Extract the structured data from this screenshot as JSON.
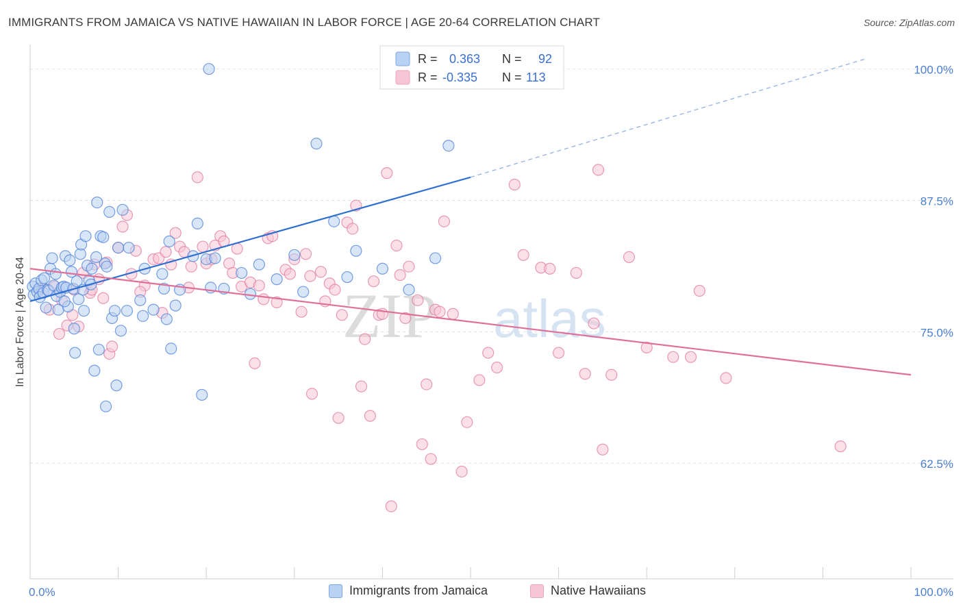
{
  "header": {
    "title": "IMMIGRANTS FROM JAMAICA VS NATIVE HAWAIIAN IN LABOR FORCE | AGE 20-64 CORRELATION CHART",
    "source": "Source: ZipAtlas.com"
  },
  "watermark": {
    "zip": "ZIP",
    "atlas": "atlas"
  },
  "chart_data": {
    "type": "scatter",
    "title": "IMMIGRANTS FROM JAMAICA VS NATIVE HAWAIIAN IN LABOR FORCE | AGE 20-64 CORRELATION CHART",
    "xlabel": "",
    "ylabel": "In Labor Force | Age 20-64",
    "xlim": [
      0,
      100
    ],
    "ylim": [
      51.5,
      102
    ],
    "x_tick_labels": [
      "0.0%",
      "100.0%"
    ],
    "y_ticks": [
      62.5,
      75.0,
      87.5,
      100.0
    ],
    "y_tick_labels": [
      "62.5%",
      "75.0%",
      "87.5%",
      "100.0%"
    ],
    "legend_stats": [
      {
        "r_label": "R =",
        "r_value": "0.363",
        "n_label": "N =",
        "n_value": "92"
      },
      {
        "r_label": "R =",
        "r_value": "-0.335",
        "n_label": "N =",
        "n_value": "113"
      }
    ],
    "series": [
      {
        "name": "Immigrants from Jamaica",
        "color": "#4a7fd8",
        "fill": "#b9d1f3",
        "trend": {
          "x0": 0,
          "y0": 77.9,
          "x1": 50,
          "y1": 89.7,
          "dashed_to_x": 95,
          "dashed_to_y": 101.0
        },
        "points": [
          [
            0.3,
            79.3
          ],
          [
            0.4,
            78.5
          ],
          [
            0.6,
            79.6
          ],
          [
            0.8,
            78.8
          ],
          [
            1.0,
            79.1
          ],
          [
            1.1,
            78.3
          ],
          [
            1.3,
            79.9
          ],
          [
            1.5,
            78.7
          ],
          [
            1.6,
            80.1
          ],
          [
            1.8,
            77.3
          ],
          [
            2.0,
            79.0
          ],
          [
            2.1,
            78.9
          ],
          [
            2.3,
            81.0
          ],
          [
            2.5,
            82.0
          ],
          [
            2.7,
            79.4
          ],
          [
            2.9,
            80.5
          ],
          [
            3.0,
            78.4
          ],
          [
            3.2,
            77.1
          ],
          [
            3.4,
            78.8
          ],
          [
            3.6,
            79.2
          ],
          [
            3.8,
            79.3
          ],
          [
            4.0,
            82.2
          ],
          [
            4.1,
            79.2
          ],
          [
            4.3,
            77.4
          ],
          [
            4.5,
            81.8
          ],
          [
            4.7,
            80.7
          ],
          [
            4.9,
            79.1
          ],
          [
            5.0,
            75.3
          ],
          [
            5.1,
            73.0
          ],
          [
            5.3,
            79.8
          ],
          [
            5.5,
            78.1
          ],
          [
            5.7,
            82.4
          ],
          [
            5.8,
            83.3
          ],
          [
            6.0,
            79.0
          ],
          [
            6.1,
            77.0
          ],
          [
            6.3,
            84.1
          ],
          [
            6.5,
            81.3
          ],
          [
            6.7,
            79.9
          ],
          [
            7.0,
            81.0
          ],
          [
            7.3,
            71.3
          ],
          [
            7.5,
            82.1
          ],
          [
            7.6,
            87.3
          ],
          [
            7.8,
            73.3
          ],
          [
            8.0,
            84.1
          ],
          [
            8.3,
            84.0
          ],
          [
            8.5,
            81.5
          ],
          [
            8.6,
            67.9
          ],
          [
            8.7,
            81.2
          ],
          [
            9.0,
            86.4
          ],
          [
            9.3,
            76.3
          ],
          [
            9.6,
            77.0
          ],
          [
            9.8,
            69.9
          ],
          [
            10.0,
            83.0
          ],
          [
            10.3,
            75.1
          ],
          [
            10.5,
            86.6
          ],
          [
            11.0,
            77.0
          ],
          [
            11.2,
            83.0
          ],
          [
            12.5,
            78.0
          ],
          [
            12.8,
            76.5
          ],
          [
            13.0,
            81.0
          ],
          [
            14.0,
            77.1
          ],
          [
            15.0,
            80.5
          ],
          [
            15.2,
            79.1
          ],
          [
            15.5,
            76.2
          ],
          [
            15.8,
            83.6
          ],
          [
            16.0,
            73.4
          ],
          [
            16.5,
            77.5
          ],
          [
            17.0,
            79.0
          ],
          [
            18.5,
            82.2
          ],
          [
            19.0,
            85.3
          ],
          [
            19.5,
            69.0
          ],
          [
            20.0,
            81.9
          ],
          [
            20.5,
            79.2
          ],
          [
            21.0,
            82.0
          ],
          [
            22.0,
            79.1
          ],
          [
            24.0,
            80.6
          ],
          [
            25.0,
            78.6
          ],
          [
            26.0,
            81.4
          ],
          [
            28.0,
            80.0
          ],
          [
            30.0,
            82.3
          ],
          [
            31.0,
            78.8
          ],
          [
            32.5,
            92.9
          ],
          [
            34.5,
            85.5
          ],
          [
            36.0,
            80.2
          ],
          [
            37.0,
            82.7
          ],
          [
            40.0,
            81.0
          ],
          [
            43.0,
            79.0
          ],
          [
            46.0,
            82.0
          ],
          [
            47.5,
            92.7
          ],
          [
            20.3,
            100.0
          ],
          [
            3.9,
            77.9
          ],
          [
            6.9,
            79.5
          ]
        ]
      },
      {
        "name": "Native Hawaiians",
        "color": "#e07aa0",
        "fill": "#f7c6d6",
        "trend": {
          "x0": 0,
          "y0": 81.0,
          "x1": 100,
          "y1": 70.9
        },
        "points": [
          [
            1.0,
            78.9
          ],
          [
            1.6,
            79.1
          ],
          [
            2.2,
            77.1
          ],
          [
            2.8,
            79.3
          ],
          [
            3.3,
            74.8
          ],
          [
            3.6,
            78.0
          ],
          [
            4.2,
            75.6
          ],
          [
            4.8,
            76.6
          ],
          [
            5.0,
            79.0
          ],
          [
            5.5,
            75.5
          ],
          [
            6.0,
            80.6
          ],
          [
            6.8,
            78.7
          ],
          [
            7.3,
            81.4
          ],
          [
            7.8,
            80.0
          ],
          [
            8.3,
            78.2
          ],
          [
            8.7,
            81.6
          ],
          [
            9.0,
            72.9
          ],
          [
            9.3,
            73.6
          ],
          [
            10.0,
            83.0
          ],
          [
            10.5,
            85.0
          ],
          [
            11.0,
            86.1
          ],
          [
            11.5,
            80.5
          ],
          [
            12.0,
            82.7
          ],
          [
            13.0,
            79.4
          ],
          [
            14.0,
            81.9
          ],
          [
            14.6,
            82.0
          ],
          [
            15.0,
            76.8
          ],
          [
            15.4,
            82.6
          ],
          [
            16.0,
            81.4
          ],
          [
            16.5,
            84.4
          ],
          [
            17.0,
            83.1
          ],
          [
            17.5,
            82.6
          ],
          [
            18.0,
            79.2
          ],
          [
            18.3,
            81.2
          ],
          [
            19.0,
            89.7
          ],
          [
            19.6,
            83.1
          ],
          [
            20.0,
            81.5
          ],
          [
            20.6,
            81.9
          ],
          [
            21.0,
            83.2
          ],
          [
            21.6,
            84.1
          ],
          [
            22.0,
            83.6
          ],
          [
            22.6,
            81.5
          ],
          [
            23.0,
            80.6
          ],
          [
            23.5,
            82.9
          ],
          [
            24.0,
            79.3
          ],
          [
            25.0,
            79.7
          ],
          [
            25.5,
            72.0
          ],
          [
            26.0,
            79.4
          ],
          [
            26.5,
            78.1
          ],
          [
            27.0,
            83.9
          ],
          [
            27.5,
            84.1
          ],
          [
            28.0,
            77.8
          ],
          [
            29.0,
            80.9
          ],
          [
            29.5,
            80.5
          ],
          [
            30.0,
            81.9
          ],
          [
            30.8,
            76.9
          ],
          [
            31.3,
            82.4
          ],
          [
            31.8,
            80.3
          ],
          [
            32.0,
            69.1
          ],
          [
            33.0,
            80.7
          ],
          [
            33.5,
            77.9
          ],
          [
            34.0,
            79.6
          ],
          [
            34.6,
            79.0
          ],
          [
            35.0,
            66.8
          ],
          [
            35.4,
            76.6
          ],
          [
            36.0,
            85.4
          ],
          [
            36.6,
            84.8
          ],
          [
            37.0,
            87.0
          ],
          [
            37.6,
            69.8
          ],
          [
            38.0,
            74.3
          ],
          [
            38.6,
            67.0
          ],
          [
            39.0,
            79.8
          ],
          [
            39.6,
            76.6
          ],
          [
            40.0,
            76.7
          ],
          [
            40.5,
            90.1
          ],
          [
            41.0,
            58.4
          ],
          [
            41.6,
            83.2
          ],
          [
            42.0,
            80.4
          ],
          [
            42.6,
            76.3
          ],
          [
            43.0,
            81.2
          ],
          [
            44.0,
            78.0
          ],
          [
            44.5,
            64.3
          ],
          [
            45.0,
            70.0
          ],
          [
            45.5,
            62.9
          ],
          [
            46.0,
            77.1
          ],
          [
            46.5,
            76.9
          ],
          [
            47.0,
            85.5
          ],
          [
            48.0,
            76.7
          ],
          [
            49.0,
            61.7
          ],
          [
            49.6,
            66.4
          ],
          [
            51.0,
            70.4
          ],
          [
            52.0,
            73.0
          ],
          [
            53.0,
            71.6
          ],
          [
            55.0,
            89.0
          ],
          [
            56.0,
            82.3
          ],
          [
            58.0,
            81.1
          ],
          [
            59.0,
            81.0
          ],
          [
            60.0,
            73.0
          ],
          [
            62.0,
            80.6
          ],
          [
            63.0,
            71.0
          ],
          [
            64.0,
            75.8
          ],
          [
            64.5,
            90.4
          ],
          [
            65.0,
            63.8
          ],
          [
            66.0,
            70.9
          ],
          [
            68.0,
            82.1
          ],
          [
            70.0,
            73.5
          ],
          [
            73.0,
            72.6
          ],
          [
            75.0,
            72.6
          ],
          [
            76.0,
            78.9
          ],
          [
            79.0,
            70.6
          ],
          [
            92.0,
            64.1
          ],
          [
            7.0,
            79.0
          ],
          [
            12.5,
            78.8
          ]
        ]
      }
    ]
  },
  "legend_bottom": [
    {
      "label": "Immigrants from Jamaica"
    },
    {
      "label": "Native Hawaiians"
    }
  ]
}
